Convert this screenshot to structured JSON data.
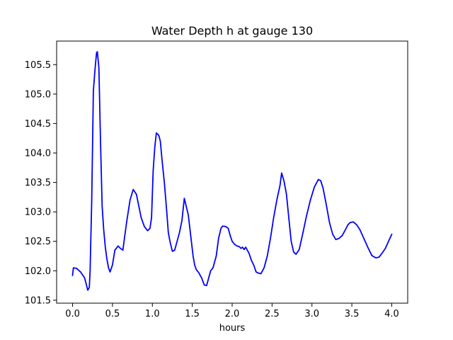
{
  "chart_data": {
    "type": "line",
    "title": "Water Depth h at gauge 130",
    "xlabel": "hours",
    "ylabel": "",
    "xlim": [
      -0.2,
      4.2
    ],
    "ylim": [
      101.45,
      105.9
    ],
    "xticks": [
      0.0,
      0.5,
      1.0,
      1.5,
      2.0,
      2.5,
      3.0,
      3.5,
      4.0
    ],
    "xtick_labels": [
      "0.0",
      "0.5",
      "1.0",
      "1.5",
      "2.0",
      "2.5",
      "3.0",
      "3.5",
      "4.0"
    ],
    "yticks": [
      101.5,
      102.0,
      102.5,
      103.0,
      103.5,
      104.0,
      104.5,
      105.0,
      105.5
    ],
    "ytick_labels": [
      "101.5",
      "102.0",
      "102.5",
      "103.0",
      "103.5",
      "104.0",
      "104.5",
      "105.0",
      "105.5"
    ],
    "grid": false,
    "legend": "none",
    "series": [
      {
        "color": "#0000ff",
        "x": [
          0.0,
          0.01,
          0.05,
          0.1,
          0.15,
          0.17,
          0.19,
          0.21,
          0.22,
          0.24,
          0.26,
          0.28,
          0.3,
          0.31,
          0.33,
          0.35,
          0.37,
          0.39,
          0.41,
          0.43,
          0.45,
          0.47,
          0.5,
          0.53,
          0.57,
          0.6,
          0.63,
          0.65,
          0.68,
          0.72,
          0.76,
          0.8,
          0.83,
          0.86,
          0.9,
          0.94,
          0.97,
          0.99,
          1.01,
          1.03,
          1.05,
          1.08,
          1.1,
          1.12,
          1.15,
          1.18,
          1.2,
          1.22,
          1.25,
          1.28,
          1.31,
          1.34,
          1.37,
          1.4,
          1.42,
          1.45,
          1.48,
          1.51,
          1.53,
          1.55,
          1.58,
          1.62,
          1.65,
          1.68,
          1.7,
          1.73,
          1.76,
          1.8,
          1.83,
          1.86,
          1.88,
          1.92,
          1.95,
          1.98,
          2.0,
          2.03,
          2.06,
          2.09,
          2.11,
          2.13,
          2.15,
          2.17,
          2.19,
          2.21,
          2.24,
          2.27,
          2.3,
          2.33,
          2.36,
          2.4,
          2.44,
          2.48,
          2.52,
          2.56,
          2.6,
          2.62,
          2.65,
          2.68,
          2.71,
          2.74,
          2.77,
          2.8,
          2.84,
          2.88,
          2.93,
          2.98,
          3.03,
          3.08,
          3.11,
          3.14,
          3.18,
          3.22,
          3.26,
          3.3,
          3.34,
          3.38,
          3.42,
          3.45,
          3.48,
          3.52,
          3.56,
          3.6,
          3.65,
          3.7,
          3.75,
          3.8,
          3.84,
          3.88,
          3.92,
          3.96,
          4.0
        ],
        "y": [
          101.92,
          102.05,
          102.04,
          101.98,
          101.88,
          101.78,
          101.67,
          101.72,
          102.0,
          103.2,
          105.05,
          105.4,
          105.7,
          105.72,
          105.45,
          104.2,
          103.1,
          102.7,
          102.4,
          102.2,
          102.05,
          101.98,
          102.1,
          102.35,
          102.42,
          102.38,
          102.35,
          102.55,
          102.85,
          103.2,
          103.38,
          103.3,
          103.1,
          102.9,
          102.75,
          102.68,
          102.72,
          102.9,
          103.7,
          104.1,
          104.34,
          104.3,
          104.2,
          103.9,
          103.5,
          103.0,
          102.65,
          102.5,
          102.33,
          102.35,
          102.5,
          102.65,
          102.85,
          103.23,
          103.12,
          102.95,
          102.6,
          102.25,
          102.1,
          102.02,
          101.97,
          101.87,
          101.76,
          101.75,
          101.85,
          102.0,
          102.05,
          102.25,
          102.55,
          102.72,
          102.76,
          102.75,
          102.72,
          102.58,
          102.5,
          102.45,
          102.42,
          102.41,
          102.38,
          102.4,
          102.36,
          102.4,
          102.35,
          102.3,
          102.18,
          102.1,
          101.98,
          101.96,
          101.95,
          102.05,
          102.25,
          102.55,
          102.9,
          103.2,
          103.45,
          103.66,
          103.52,
          103.3,
          102.9,
          102.5,
          102.32,
          102.28,
          102.36,
          102.6,
          102.92,
          103.2,
          103.42,
          103.55,
          103.53,
          103.4,
          103.12,
          102.82,
          102.62,
          102.53,
          102.55,
          102.6,
          102.7,
          102.78,
          102.82,
          102.83,
          102.78,
          102.7,
          102.55,
          102.4,
          102.26,
          102.22,
          102.23,
          102.3,
          102.38,
          102.5,
          102.62
        ]
      }
    ]
  }
}
